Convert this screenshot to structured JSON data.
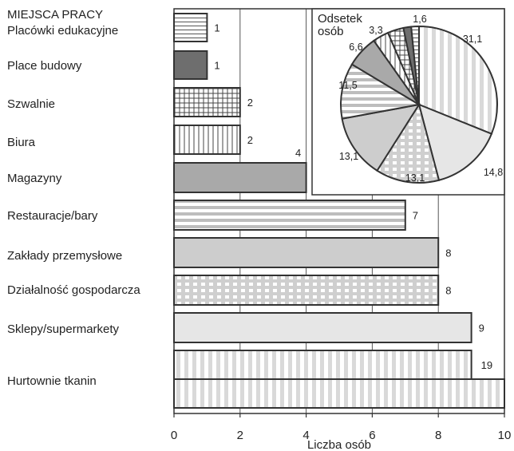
{
  "chart_data": [
    {
      "type": "bar",
      "orientation": "horizontal",
      "title": "MIEJSCA PRACY",
      "xlabel": "Liczba osób",
      "xlim": [
        0,
        10
      ],
      "xticks": [
        "0",
        "2",
        "4",
        "6",
        "8",
        "10"
      ],
      "grid": true,
      "categories": [
        "Placówki edukacyjne",
        "Place budowy",
        "Szwalnie",
        "Biura",
        "Magazyny",
        "Restauracje/bary",
        "Zakłady przemysłowe",
        "Działalność gospodarcza",
        "Sklepy/supermarkety",
        "Hurtownie tkanin"
      ],
      "values": [
        1,
        1,
        2,
        2,
        4,
        7,
        8,
        8,
        9,
        19
      ],
      "value_labels": [
        "1",
        "1",
        "2",
        "2",
        "4",
        "7",
        "8",
        "8",
        "9",
        "19"
      ],
      "patterns": [
        "hlines",
        "dark",
        "grid",
        "vlines",
        "medium",
        "hstripes",
        "light",
        "dots",
        "lighter",
        "vstripes"
      ]
    },
    {
      "type": "pie",
      "title": "Odsetek osób",
      "labels": [
        "31,1",
        "14,8",
        "13,1",
        "13,1",
        "11,5",
        "6,6",
        "3,3",
        "3,3",
        "1,6",
        "1,6"
      ],
      "values": [
        31.1,
        14.8,
        13.1,
        13.1,
        11.5,
        6.6,
        3.3,
        3.3,
        1.6,
        1.6
      ],
      "patterns": [
        "vstripes",
        "lighter",
        "dots",
        "light",
        "hstripes",
        "medium",
        "vlines",
        "grid",
        "dark",
        "hlines"
      ]
    }
  ]
}
